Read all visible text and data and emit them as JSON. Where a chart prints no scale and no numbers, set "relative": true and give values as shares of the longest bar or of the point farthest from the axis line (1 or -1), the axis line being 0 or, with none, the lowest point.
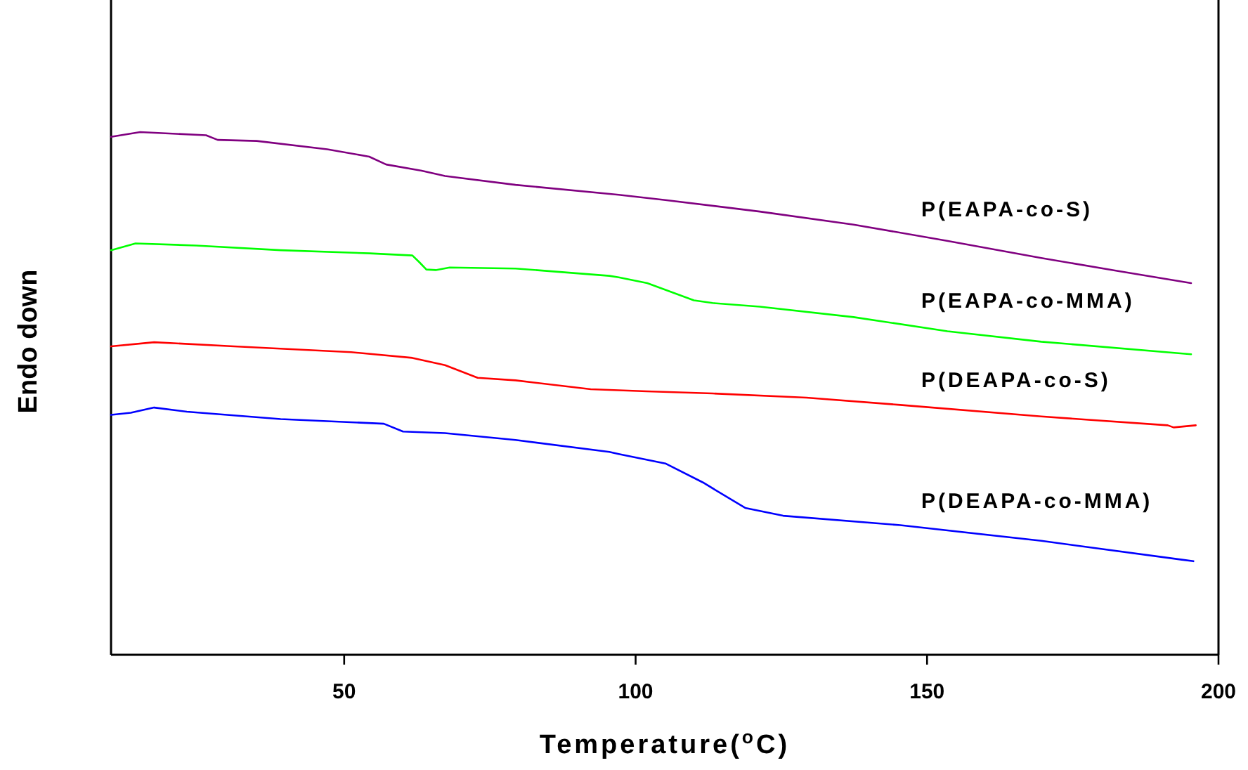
{
  "chart_data": {
    "type": "line",
    "relative": true,
    "xlabel": "Temperature($^{o}$C)",
    "ylabel": "Endo down",
    "xlim": [
      10,
      200
    ],
    "xticks": [
      50,
      100,
      150,
      200
    ],
    "grid": false,
    "marker": "none",
    "line_style": "solid",
    "series": [
      {
        "name": "P(EAPA-co-S)",
        "color": "#800080",
        "x": [
          10,
          15,
          26.3,
          28.3,
          35,
          47.1,
          54.3,
          57.2,
          63.3,
          67.3,
          79.4,
          97.1,
          105.1,
          121.3,
          137.4,
          153.4,
          169.6,
          182.4,
          195.3
        ],
        "values": [
          0.991,
          1,
          0.994,
          0.985,
          0.983,
          0.967,
          0.953,
          0.938,
          0.926,
          0.916,
          0.899,
          0.88,
          0.87,
          0.848,
          0.823,
          0.792,
          0.759,
          0.735,
          0.711
        ]
      },
      {
        "name": "P(EAPA-co-MMA)",
        "color": "#00ff00",
        "x": [
          10,
          14.2,
          24.6,
          39.1,
          54.4,
          61.7,
          62.9,
          64.1,
          65.7,
          68.1,
          79.4,
          95.5,
          97.1,
          102,
          110,
          113.2,
          121.3,
          137.4,
          153.5,
          169.6,
          195.3
        ],
        "values": [
          0.774,
          0.787,
          0.783,
          0.774,
          0.768,
          0.764,
          0.751,
          0.737,
          0.736,
          0.741,
          0.739,
          0.725,
          0.722,
          0.711,
          0.678,
          0.673,
          0.666,
          0.646,
          0.619,
          0.599,
          0.575
        ]
      },
      {
        "name": "P(DEAPA-co-S)",
        "color": "#ff0000",
        "x": [
          10,
          17.4,
          31.1,
          51.2,
          61.7,
          67.3,
          72.9,
          79.4,
          92.3,
          101.9,
          113.2,
          129.3,
          145.4,
          169.6,
          191.3,
          192.3,
          196.1
        ],
        "values": [
          0.59,
          0.598,
          0.59,
          0.579,
          0.568,
          0.554,
          0.53,
          0.525,
          0.508,
          0.504,
          0.5,
          0.492,
          0.478,
          0.456,
          0.439,
          0.435,
          0.439
        ]
      },
      {
        "name": "P(DEAPA-co-MMA)",
        "color": "#0000ff",
        "x": [
          10,
          13.4,
          17.4,
          23,
          39.1,
          56.8,
          60.1,
          67.3,
          79.4,
          95.5,
          97.1,
          105.1,
          111.5,
          118.8,
          125.3,
          145.4,
          169.6,
          193.7,
          195.7
        ],
        "values": [
          0.459,
          0.463,
          0.473,
          0.465,
          0.451,
          0.442,
          0.427,
          0.424,
          0.411,
          0.388,
          0.384,
          0.366,
          0.33,
          0.281,
          0.266,
          0.248,
          0.218,
          0.182,
          0.179
        ]
      }
    ]
  }
}
